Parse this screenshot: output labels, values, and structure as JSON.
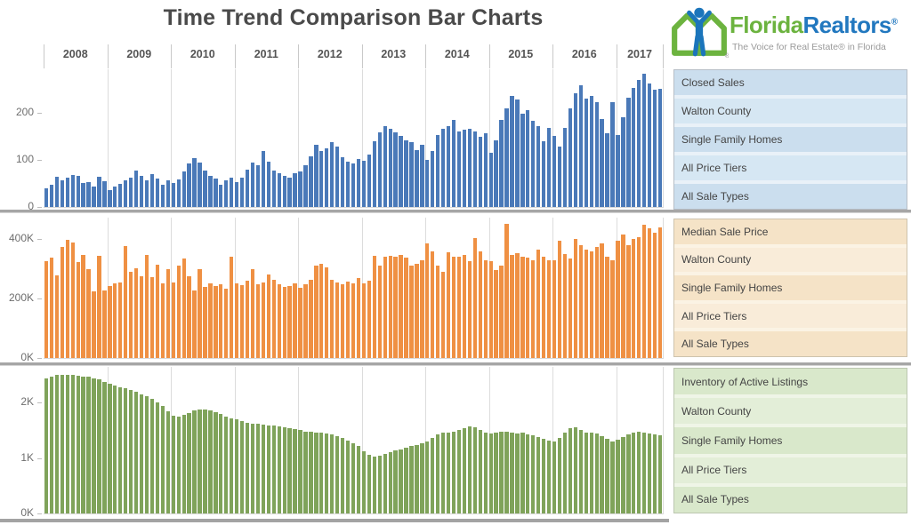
{
  "title": "Time Trend Comparison Bar Charts",
  "logo": {
    "brand_green": "Florida",
    "brand_blue": "Realtors",
    "registered": "®",
    "tagline": "The Voice for Real Estate® in Florida"
  },
  "x_axis": {
    "years": [
      "2008",
      "2009",
      "2010",
      "2011",
      "2012",
      "2013",
      "2014",
      "2015",
      "2016",
      "2017"
    ]
  },
  "panels": [
    {
      "id": "closed-sales",
      "rows": [
        "Closed Sales",
        "Walton County",
        "Single Family Homes",
        "All Price Tiers",
        "All Sale Types"
      ]
    },
    {
      "id": "median-sale-price",
      "rows": [
        "Median Sale Price",
        "Walton County",
        "Single Family Homes",
        "All Price Tiers",
        "All Sale Types"
      ]
    },
    {
      "id": "inventory-active-listings",
      "rows": [
        "Inventory of Active Listings",
        "Walton County",
        "Single Family Homes",
        "All Price Tiers",
        "All Sale Types"
      ]
    }
  ],
  "chart_data": [
    {
      "type": "bar",
      "title": "Closed Sales",
      "region": "Walton County",
      "x": "monthly, Jan 2008 - Sep 2017",
      "color": "#4a79b8",
      "ylim": [
        0,
        292
      ],
      "yticks": [
        {
          "label": "0",
          "value": 0
        },
        {
          "label": "100",
          "value": 100
        },
        {
          "label": "200",
          "value": 200
        }
      ],
      "grid": "vertical-year-lines",
      "values": [
        40,
        48,
        65,
        57,
        63,
        68,
        66,
        50,
        52,
        44,
        64,
        54,
        36,
        43,
        49,
        56,
        63,
        78,
        66,
        56,
        70,
        60,
        48,
        57,
        50,
        58,
        76,
        92,
        103,
        95,
        78,
        66,
        60,
        48,
        56,
        62,
        52,
        62,
        80,
        95,
        88,
        118,
        96,
        78,
        72,
        66,
        62,
        72,
        76,
        88,
        108,
        132,
        118,
        125,
        138,
        128,
        106,
        96,
        92,
        102,
        98,
        112,
        140,
        158,
        172,
        165,
        158,
        150,
        142,
        138,
        120,
        132,
        100,
        118,
        152,
        165,
        172,
        185,
        160,
        163,
        166,
        160,
        148,
        156,
        115,
        142,
        185,
        210,
        235,
        228,
        198,
        205,
        182,
        172,
        140,
        168,
        150,
        128,
        168,
        210,
        242,
        258,
        230,
        235,
        222,
        186,
        156,
        222,
        152,
        190,
        232,
        252,
        270,
        282,
        262,
        248,
        250
      ]
    },
    {
      "type": "bar",
      "title": "Median Sale Price",
      "region": "Walton County",
      "x": "monthly, Jan 2008 - Sep 2017",
      "unit": "thousand USD",
      "color": "#ef9043",
      "ylim": [
        0,
        472
      ],
      "yticks": [
        {
          "label": "0K",
          "value": 0
        },
        {
          "label": "200K",
          "value": 200
        },
        {
          "label": "400K",
          "value": 400
        }
      ],
      "grid": "vertical-year-lines",
      "values": [
        325,
        338,
        278,
        373,
        396,
        388,
        323,
        348,
        298,
        223,
        343,
        228,
        243,
        250,
        255,
        375,
        290,
        303,
        275,
        348,
        272,
        313,
        250,
        298,
        255,
        310,
        335,
        275,
        228,
        298,
        240,
        250,
        242,
        247,
        232,
        342,
        250,
        245,
        260,
        300,
        248,
        255,
        280,
        262,
        248,
        238,
        242,
        252,
        235,
        248,
        262,
        310,
        318,
        305,
        262,
        253,
        248,
        258,
        252,
        270,
        252,
        260,
        345,
        310,
        340,
        345,
        342,
        348,
        338,
        310,
        318,
        330,
        385,
        360,
        310,
        290,
        355,
        340,
        342,
        347,
        326,
        403,
        360,
        330,
        325,
        295,
        310,
        452,
        347,
        352,
        342,
        338,
        330,
        365,
        340,
        328,
        330,
        395,
        350,
        335,
        400,
        380,
        365,
        360,
        372,
        385,
        342,
        330,
        395,
        415,
        380,
        400,
        405,
        448,
        435,
        420,
        440
      ]
    },
    {
      "type": "bar",
      "title": "Inventory of Active Listings",
      "region": "Walton County",
      "x": "monthly, Jan 2008 - Sep 2017",
      "unit": "thousand listings",
      "color": "#7fa35a",
      "ylim": [
        0,
        2.64
      ],
      "yticks": [
        {
          "label": "0K",
          "value": 0
        },
        {
          "label": "1K",
          "value": 1
        },
        {
          "label": "2K",
          "value": 2
        }
      ],
      "grid": "vertical-year-lines",
      "values": [
        2.44,
        2.47,
        2.5,
        2.5,
        2.5,
        2.49,
        2.48,
        2.47,
        2.46,
        2.44,
        2.41,
        2.37,
        2.33,
        2.3,
        2.28,
        2.25,
        2.22,
        2.19,
        2.15,
        2.11,
        2.06,
        2.0,
        1.93,
        1.84,
        1.76,
        1.74,
        1.77,
        1.81,
        1.85,
        1.87,
        1.88,
        1.86,
        1.83,
        1.79,
        1.75,
        1.72,
        1.69,
        1.66,
        1.64,
        1.62,
        1.61,
        1.6,
        1.59,
        1.58,
        1.57,
        1.55,
        1.53,
        1.52,
        1.5,
        1.48,
        1.47,
        1.46,
        1.45,
        1.44,
        1.42,
        1.39,
        1.36,
        1.32,
        1.27,
        1.21,
        1.12,
        1.05,
        1.03,
        1.04,
        1.07,
        1.1,
        1.13,
        1.16,
        1.19,
        1.22,
        1.24,
        1.26,
        1.29,
        1.36,
        1.43,
        1.46,
        1.45,
        1.47,
        1.5,
        1.53,
        1.57,
        1.55,
        1.5,
        1.46,
        1.44,
        1.46,
        1.48,
        1.47,
        1.45,
        1.44,
        1.45,
        1.43,
        1.41,
        1.38,
        1.35,
        1.32,
        1.3,
        1.36,
        1.45,
        1.53,
        1.55,
        1.5,
        1.46,
        1.45,
        1.44,
        1.4,
        1.34,
        1.29,
        1.33,
        1.38,
        1.42,
        1.45,
        1.47,
        1.46,
        1.44,
        1.43,
        1.41
      ]
    }
  ]
}
